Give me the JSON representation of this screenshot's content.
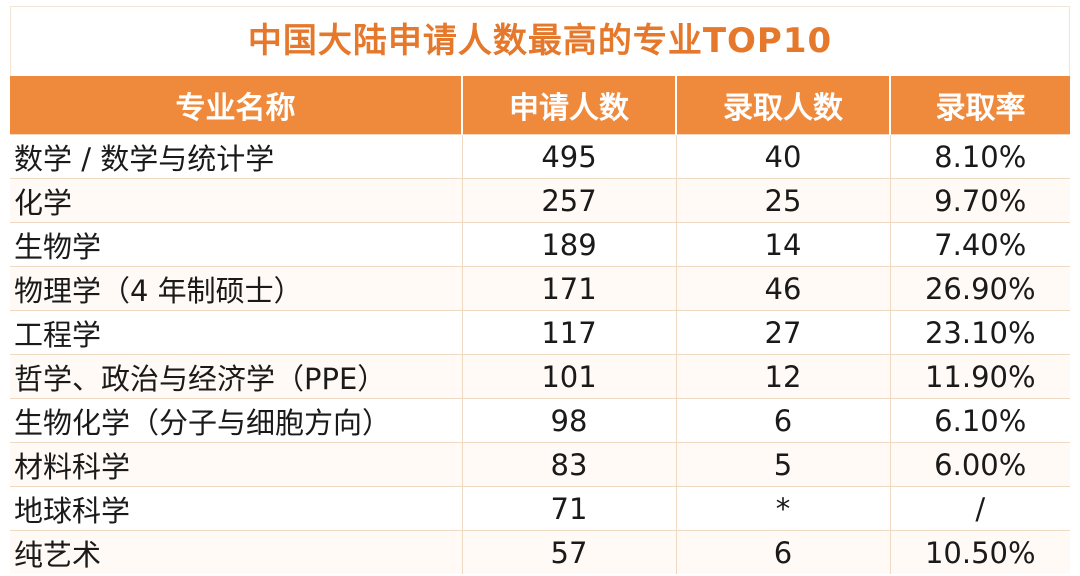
{
  "chart_data": {
    "type": "table",
    "title": "中国大陆申请人数最高的专业TOP10",
    "columns": [
      "专业名称",
      "申请人数",
      "录取人数",
      "录取率"
    ],
    "rows": [
      {
        "major": "数学 / 数学与统计学",
        "applicants": "495",
        "admitted": "40",
        "rate": "8.10%"
      },
      {
        "major": "化学",
        "applicants": "257",
        "admitted": "25",
        "rate": "9.70%"
      },
      {
        "major": "生物学",
        "applicants": "189",
        "admitted": "14",
        "rate": "7.40%"
      },
      {
        "major": "物理学（4 年制硕士）",
        "applicants": "171",
        "admitted": "46",
        "rate": "26.90%"
      },
      {
        "major": "工程学",
        "applicants": "117",
        "admitted": "27",
        "rate": "23.10%"
      },
      {
        "major": "哲学、政治与经济学（PPE）",
        "applicants": "101",
        "admitted": "12",
        "rate": "11.90%"
      },
      {
        "major": "生物化学（分子与细胞方向）",
        "applicants": "98",
        "admitted": "6",
        "rate": "6.10%"
      },
      {
        "major": "材料科学",
        "applicants": "83",
        "admitted": "5",
        "rate": "6.00%"
      },
      {
        "major": "地球科学",
        "applicants": "71",
        "admitted": "*",
        "rate": "/"
      },
      {
        "major": "纯艺术",
        "applicants": "57",
        "admitted": "6",
        "rate": "10.50%"
      }
    ]
  },
  "colors": {
    "title": "#e5782b",
    "header_bg": "#ef8a3c",
    "header_text": "#ffffff",
    "cell_text": "#1a1a1a",
    "grid_line": "#f0d9c3"
  }
}
